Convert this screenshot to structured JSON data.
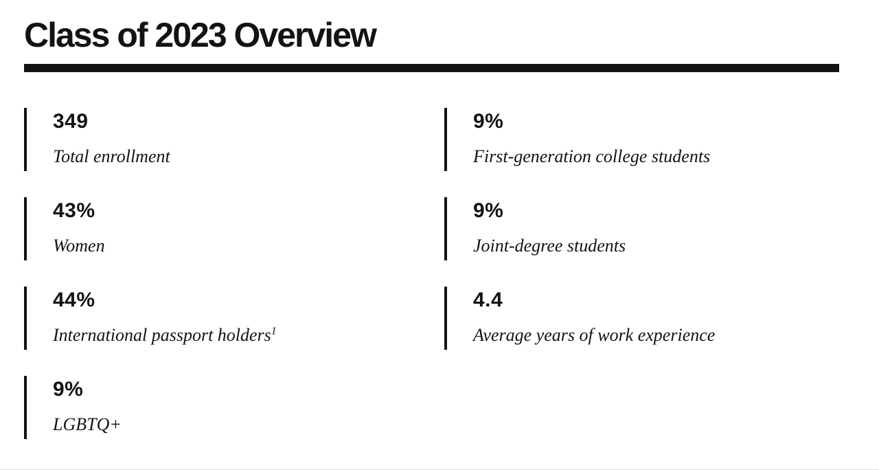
{
  "page": {
    "title": "Class of 2023 Overview"
  },
  "colors": {
    "ink": "#131313",
    "background": "#ffffff"
  },
  "stats": {
    "left": [
      {
        "value": "349",
        "label": "Total enrollment",
        "superscript": ""
      },
      {
        "value": "43%",
        "label": "Women",
        "superscript": ""
      },
      {
        "value": "44%",
        "label": "International passport holders",
        "superscript": "1"
      },
      {
        "value": "9%",
        "label": "LGBTQ+",
        "superscript": ""
      }
    ],
    "right": [
      {
        "value": "9%",
        "label": "First-generation college students",
        "superscript": ""
      },
      {
        "value": "9%",
        "label": "Joint-degree students",
        "superscript": ""
      },
      {
        "value": "4.4",
        "label": "Average years of work experience",
        "superscript": ""
      }
    ]
  }
}
